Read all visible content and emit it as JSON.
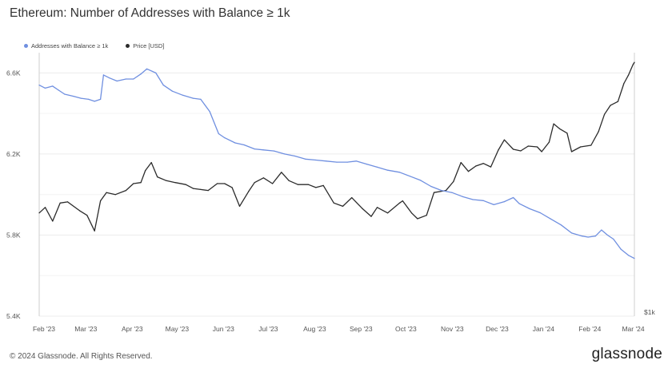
{
  "header": {
    "title": "Ethereum: Number of Addresses with Balance ≥ 1k"
  },
  "footer": {
    "copyright": "© 2024 Glassnode. All Rights Reserved.",
    "logo": "glassnode"
  },
  "colors": {
    "addresses": "#6f8fe0",
    "price": "#2b2b2b",
    "grid": "#ececec",
    "axis": "#cfcfcf"
  },
  "chart_data": {
    "type": "line",
    "title": "Ethereum: Number of Addresses with Balance ≥ 1k",
    "legend_placement": "top-left",
    "grid": true,
    "x_range": [
      "2023-02-01",
      "2024-03-05"
    ],
    "x_ticks": [
      "Feb '23",
      "Mar '23",
      "Apr '23",
      "May '23",
      "Jun '23",
      "Jul '23",
      "Aug '23",
      "Sep '23",
      "Oct '23",
      "Nov '23",
      "Dec '23",
      "Jan '24",
      "Feb '24",
      "Mar '24"
    ],
    "y_left": {
      "range": [
        5400,
        6700
      ],
      "ticks": [
        5400,
        5800,
        6200,
        6600
      ],
      "tick_labels": [
        "5.4K",
        "5.8K",
        "6.2K",
        "6.6K"
      ]
    },
    "y_right": {
      "tick_labels": [
        "$1k"
      ],
      "scale": "log"
    },
    "series": [
      {
        "name": "Addresses with Balance ≥ 1k",
        "axis": "left",
        "points": [
          [
            "2023-02-01",
            6540
          ],
          [
            "2023-02-05",
            6525
          ],
          [
            "2023-02-10",
            6535
          ],
          [
            "2023-02-14",
            6515
          ],
          [
            "2023-02-18",
            6495
          ],
          [
            "2023-02-24",
            6485
          ],
          [
            "2023-03-01",
            6475
          ],
          [
            "2023-03-06",
            6470
          ],
          [
            "2023-03-10",
            6460
          ],
          [
            "2023-03-14",
            6470
          ],
          [
            "2023-03-16",
            6590
          ],
          [
            "2023-03-20",
            6575
          ],
          [
            "2023-03-25",
            6560
          ],
          [
            "2023-03-31",
            6570
          ],
          [
            "2023-04-05",
            6570
          ],
          [
            "2023-04-10",
            6595
          ],
          [
            "2023-04-14",
            6620
          ],
          [
            "2023-04-20",
            6600
          ],
          [
            "2023-04-25",
            6540
          ],
          [
            "2023-05-01",
            6510
          ],
          [
            "2023-05-08",
            6490
          ],
          [
            "2023-05-15",
            6475
          ],
          [
            "2023-05-20",
            6470
          ],
          [
            "2023-05-26",
            6410
          ],
          [
            "2023-06-01",
            6300
          ],
          [
            "2023-06-05",
            6280
          ],
          [
            "2023-06-12",
            6255
          ],
          [
            "2023-06-18",
            6245
          ],
          [
            "2023-06-25",
            6225
          ],
          [
            "2023-07-01",
            6220
          ],
          [
            "2023-07-08",
            6215
          ],
          [
            "2023-07-15",
            6200
          ],
          [
            "2023-07-22",
            6190
          ],
          [
            "2023-07-29",
            6175
          ],
          [
            "2023-08-05",
            6170
          ],
          [
            "2023-08-12",
            6165
          ],
          [
            "2023-08-19",
            6160
          ],
          [
            "2023-08-26",
            6160
          ],
          [
            "2023-09-01",
            6165
          ],
          [
            "2023-09-08",
            6150
          ],
          [
            "2023-09-15",
            6135
          ],
          [
            "2023-09-22",
            6120
          ],
          [
            "2023-09-30",
            6110
          ],
          [
            "2023-10-07",
            6090
          ],
          [
            "2023-10-14",
            6070
          ],
          [
            "2023-10-21",
            6040
          ],
          [
            "2023-10-28",
            6020
          ],
          [
            "2023-11-04",
            6010
          ],
          [
            "2023-11-11",
            5990
          ],
          [
            "2023-11-18",
            5975
          ],
          [
            "2023-11-25",
            5970
          ],
          [
            "2023-12-02",
            5950
          ],
          [
            "2023-12-09",
            5965
          ],
          [
            "2023-12-15",
            5985
          ],
          [
            "2023-12-19",
            5955
          ],
          [
            "2023-12-26",
            5930
          ],
          [
            "2024-01-02",
            5910
          ],
          [
            "2024-01-09",
            5880
          ],
          [
            "2024-01-16",
            5850
          ],
          [
            "2024-01-23",
            5810
          ],
          [
            "2024-01-30",
            5795
          ],
          [
            "2024-02-03",
            5790
          ],
          [
            "2024-02-08",
            5795
          ],
          [
            "2024-02-12",
            5825
          ],
          [
            "2024-02-16",
            5800
          ],
          [
            "2024-02-20",
            5780
          ],
          [
            "2024-02-25",
            5730
          ],
          [
            "2024-03-01",
            5700
          ],
          [
            "2024-03-05",
            5685
          ]
        ]
      },
      {
        "name": "Price [USD]",
        "axis": "right",
        "points": [
          [
            "2023-02-01",
            1590
          ],
          [
            "2023-02-05",
            1640
          ],
          [
            "2023-02-10",
            1520
          ],
          [
            "2023-02-15",
            1680
          ],
          [
            "2023-02-20",
            1690
          ],
          [
            "2023-02-28",
            1610
          ],
          [
            "2023-03-05",
            1570
          ],
          [
            "2023-03-10",
            1440
          ],
          [
            "2023-03-14",
            1700
          ],
          [
            "2023-03-18",
            1780
          ],
          [
            "2023-03-24",
            1760
          ],
          [
            "2023-03-31",
            1800
          ],
          [
            "2023-04-05",
            1870
          ],
          [
            "2023-04-10",
            1880
          ],
          [
            "2023-04-13",
            2010
          ],
          [
            "2023-04-17",
            2100
          ],
          [
            "2023-04-21",
            1940
          ],
          [
            "2023-04-27",
            1900
          ],
          [
            "2023-05-03",
            1880
          ],
          [
            "2023-05-10",
            1860
          ],
          [
            "2023-05-15",
            1820
          ],
          [
            "2023-05-20",
            1810
          ],
          [
            "2023-05-25",
            1800
          ],
          [
            "2023-05-31",
            1870
          ],
          [
            "2023-06-05",
            1870
          ],
          [
            "2023-06-10",
            1830
          ],
          [
            "2023-06-15",
            1650
          ],
          [
            "2023-06-21",
            1790
          ],
          [
            "2023-06-25",
            1880
          ],
          [
            "2023-07-01",
            1930
          ],
          [
            "2023-07-07",
            1870
          ],
          [
            "2023-07-13",
            1990
          ],
          [
            "2023-07-18",
            1900
          ],
          [
            "2023-07-24",
            1860
          ],
          [
            "2023-07-31",
            1860
          ],
          [
            "2023-08-05",
            1830
          ],
          [
            "2023-08-10",
            1850
          ],
          [
            "2023-08-17",
            1680
          ],
          [
            "2023-08-23",
            1650
          ],
          [
            "2023-08-29",
            1730
          ],
          [
            "2023-09-05",
            1630
          ],
          [
            "2023-09-11",
            1560
          ],
          [
            "2023-09-15",
            1640
          ],
          [
            "2023-09-22",
            1590
          ],
          [
            "2023-09-30",
            1680
          ],
          [
            "2023-10-02",
            1700
          ],
          [
            "2023-10-08",
            1590
          ],
          [
            "2023-10-12",
            1540
          ],
          [
            "2023-10-18",
            1570
          ],
          [
            "2023-10-23",
            1780
          ],
          [
            "2023-10-31",
            1800
          ],
          [
            "2023-11-05",
            1890
          ],
          [
            "2023-11-10",
            2100
          ],
          [
            "2023-11-15",
            2000
          ],
          [
            "2023-11-20",
            2060
          ],
          [
            "2023-11-25",
            2090
          ],
          [
            "2023-11-30",
            2050
          ],
          [
            "2023-12-05",
            2250
          ],
          [
            "2023-12-09",
            2380
          ],
          [
            "2023-12-15",
            2260
          ],
          [
            "2023-12-20",
            2240
          ],
          [
            "2023-12-25",
            2300
          ],
          [
            "2023-12-31",
            2290
          ],
          [
            "2024-01-03",
            2230
          ],
          [
            "2024-01-08",
            2350
          ],
          [
            "2024-01-11",
            2600
          ],
          [
            "2024-01-15",
            2530
          ],
          [
            "2024-01-20",
            2470
          ],
          [
            "2024-01-23",
            2230
          ],
          [
            "2024-01-29",
            2290
          ],
          [
            "2024-02-05",
            2310
          ],
          [
            "2024-02-10",
            2490
          ],
          [
            "2024-02-14",
            2740
          ],
          [
            "2024-02-18",
            2880
          ],
          [
            "2024-02-23",
            2940
          ],
          [
            "2024-02-27",
            3250
          ],
          [
            "2024-03-01",
            3400
          ],
          [
            "2024-03-04",
            3600
          ],
          [
            "2024-03-05",
            3650
          ]
        ]
      }
    ]
  }
}
